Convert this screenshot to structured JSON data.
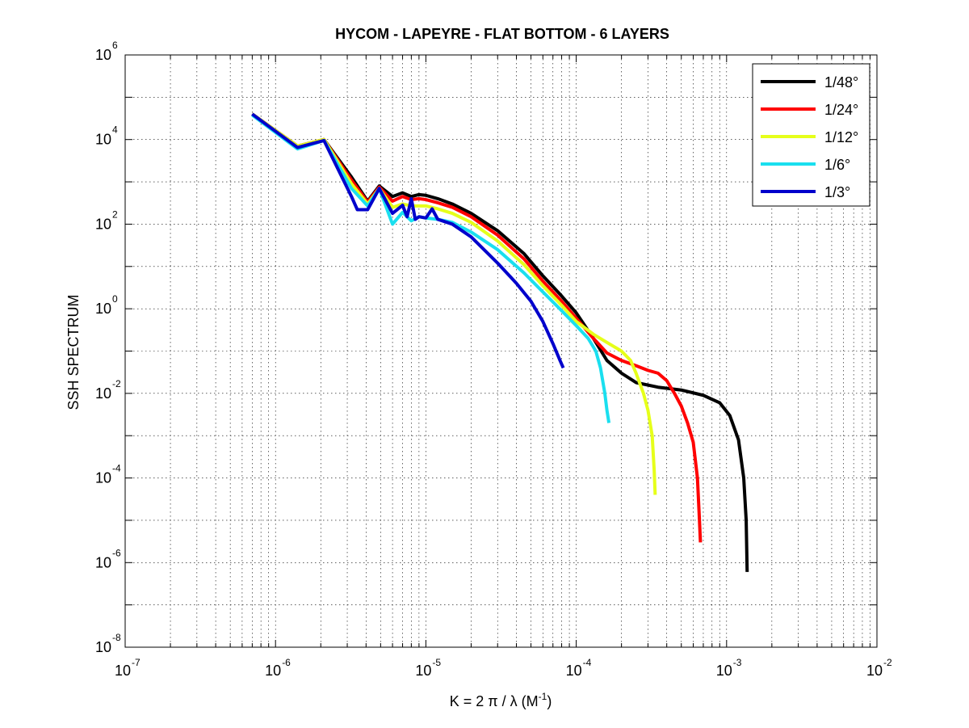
{
  "chart_data": {
    "type": "line",
    "title": "HYCOM - LAPEYRE - FLAT BOTTOM - 6 LAYERS",
    "xlabel": {
      "main": "K = 2 π / λ  (M",
      "sup": "-1",
      "close": ")"
    },
    "ylabel": "SSH SPECTRUM",
    "xscale": "log",
    "yscale": "log",
    "xlim_exp": [
      -7,
      -2
    ],
    "ylim_exp": [
      -8,
      6
    ],
    "x_ticks": [
      {
        "base": "10",
        "exp": "-7"
      },
      {
        "base": "10",
        "exp": "-6"
      },
      {
        "base": "10",
        "exp": "-5"
      },
      {
        "base": "10",
        "exp": "-4"
      },
      {
        "base": "10",
        "exp": "-3"
      },
      {
        "base": "10",
        "exp": "-2"
      }
    ],
    "y_ticks": [
      {
        "base": "10",
        "exp": "6"
      },
      {
        "base": "10",
        "exp": "4"
      },
      {
        "base": "10",
        "exp": "2"
      },
      {
        "base": "10",
        "exp": "0"
      },
      {
        "base": "10",
        "exp": "-2"
      },
      {
        "base": "10",
        "exp": "-4"
      },
      {
        "base": "10",
        "exp": "-6"
      },
      {
        "base": "10",
        "exp": "-8"
      }
    ],
    "grid": true,
    "legend_position": "top-right",
    "series": [
      {
        "name": "1/48°",
        "color": "#000000",
        "points": [
          [
            7e-07,
            40000
          ],
          [
            1.4e-06,
            7000
          ],
          [
            2.1e-06,
            10000
          ],
          [
            3.2e-06,
            1300
          ],
          [
            4.1e-06,
            350
          ],
          [
            4.9e-06,
            800
          ],
          [
            6e-06,
            450
          ],
          [
            7e-06,
            550
          ],
          [
            8e-06,
            450
          ],
          [
            9e-06,
            500
          ],
          [
            1e-05,
            480
          ],
          [
            1.2e-05,
            400
          ],
          [
            1.5e-05,
            300
          ],
          [
            2e-05,
            180
          ],
          [
            3e-05,
            70
          ],
          [
            4.5e-05,
            20
          ],
          [
            6e-05,
            6
          ],
          [
            8e-05,
            2
          ],
          [
            0.0001,
            0.8
          ],
          [
            0.00013,
            0.2
          ],
          [
            0.00016,
            0.06
          ],
          [
            0.0002,
            0.03
          ],
          [
            0.00025,
            0.018
          ],
          [
            0.00035,
            0.014
          ],
          [
            0.0005,
            0.012
          ],
          [
            0.0007,
            0.009
          ],
          [
            0.0009,
            0.006
          ],
          [
            0.00105,
            0.003
          ],
          [
            0.0012,
            0.0008
          ],
          [
            0.0013,
            0.0001
          ],
          [
            0.00135,
            1e-05
          ],
          [
            0.00137,
            6e-07
          ]
        ]
      },
      {
        "name": "1/24°",
        "color": "#ff0000",
        "points": [
          [
            7e-07,
            40000
          ],
          [
            1.4e-06,
            7000
          ],
          [
            2.1e-06,
            10000
          ],
          [
            3.2e-06,
            1100
          ],
          [
            4.1e-06,
            330
          ],
          [
            4.9e-06,
            750
          ],
          [
            6e-06,
            350
          ],
          [
            7e-06,
            450
          ],
          [
            8e-06,
            380
          ],
          [
            9e-06,
            400
          ],
          [
            1e-05,
            380
          ],
          [
            1.2e-05,
            320
          ],
          [
            1.5e-05,
            250
          ],
          [
            2e-05,
            150
          ],
          [
            3e-05,
            55
          ],
          [
            4.5e-05,
            15
          ],
          [
            6e-05,
            4.5
          ],
          [
            8e-05,
            1.5
          ],
          [
            0.0001,
            0.6
          ],
          [
            0.00013,
            0.2
          ],
          [
            0.00016,
            0.09
          ],
          [
            0.0002,
            0.06
          ],
          [
            0.00025,
            0.045
          ],
          [
            0.0003,
            0.035
          ],
          [
            0.00035,
            0.03
          ],
          [
            0.0004,
            0.02
          ],
          [
            0.00045,
            0.01
          ],
          [
            0.0005,
            0.005
          ],
          [
            0.00055,
            0.002
          ],
          [
            0.0006,
            0.0007
          ],
          [
            0.00064,
            0.0001
          ],
          [
            0.00066,
            1e-05
          ],
          [
            0.00067,
            3e-06
          ]
        ]
      },
      {
        "name": "1/12°",
        "color": "#e6ff1a",
        "points": [
          [
            7e-07,
            40000
          ],
          [
            1.4e-06,
            7000
          ],
          [
            2.1e-06,
            10000
          ],
          [
            3.2e-06,
            900
          ],
          [
            4.1e-06,
            300
          ],
          [
            4.9e-06,
            700
          ],
          [
            6e-06,
            250
          ],
          [
            7e-06,
            300
          ],
          [
            8e-06,
            270
          ],
          [
            1e-05,
            270
          ],
          [
            1.2e-05,
            230
          ],
          [
            1.5e-05,
            180
          ],
          [
            2e-05,
            110
          ],
          [
            3e-05,
            40
          ],
          [
            4.5e-05,
            11
          ],
          [
            6e-05,
            3.5
          ],
          [
            8e-05,
            1.2
          ],
          [
            0.0001,
            0.5
          ],
          [
            0.00013,
            0.25
          ],
          [
            0.00016,
            0.16
          ],
          [
            0.0002,
            0.1
          ],
          [
            0.00023,
            0.06
          ],
          [
            0.00025,
            0.03
          ],
          [
            0.00028,
            0.01
          ],
          [
            0.0003,
            0.004
          ],
          [
            0.00032,
            0.001
          ],
          [
            0.00033,
            0.00015
          ],
          [
            0.000335,
            4e-05
          ]
        ]
      },
      {
        "name": "1/6°",
        "color": "#1adfef",
        "points": [
          [
            7e-07,
            38000
          ],
          [
            1.4e-06,
            6000
          ],
          [
            2.1e-06,
            9500
          ],
          [
            3.2e-06,
            700
          ],
          [
            4.1e-06,
            270
          ],
          [
            4.9e-06,
            700
          ],
          [
            6e-06,
            100
          ],
          [
            7e-06,
            190
          ],
          [
            8e-06,
            120
          ],
          [
            9e-06,
            150
          ],
          [
            1e-05,
            140
          ],
          [
            1.2e-05,
            130
          ],
          [
            1.5e-05,
            110
          ],
          [
            2e-05,
            65
          ],
          [
            3e-05,
            25
          ],
          [
            4.5e-05,
            7
          ],
          [
            6e-05,
            2.5
          ],
          [
            8e-05,
            0.9
          ],
          [
            0.0001,
            0.4
          ],
          [
            0.00012,
            0.2
          ],
          [
            0.000135,
            0.1
          ],
          [
            0.000145,
            0.04
          ],
          [
            0.000155,
            0.01
          ],
          [
            0.00016,
            0.004
          ],
          [
            0.000165,
            0.002
          ]
        ]
      },
      {
        "name": "1/3°",
        "color": "#0000cc",
        "points": [
          [
            7e-07,
            40000
          ],
          [
            1.4e-06,
            6500
          ],
          [
            2.1e-06,
            9500
          ],
          [
            3.2e-06,
            450
          ],
          [
            3.5e-06,
            220
          ],
          [
            4.1e-06,
            220
          ],
          [
            4.9e-06,
            700
          ],
          [
            6e-06,
            180
          ],
          [
            7e-06,
            280
          ],
          [
            7.5e-06,
            150
          ],
          [
            8e-06,
            400
          ],
          [
            8.5e-06,
            130
          ],
          [
            9e-06,
            150
          ],
          [
            1e-05,
            140
          ],
          [
            1.1e-05,
            230
          ],
          [
            1.2e-05,
            130
          ],
          [
            1.5e-05,
            100
          ],
          [
            2e-05,
            50
          ],
          [
            3e-05,
            12
          ],
          [
            4e-05,
            4
          ],
          [
            5e-05,
            1.5
          ],
          [
            6e-05,
            0.5
          ],
          [
            7e-05,
            0.15
          ],
          [
            7.8e-05,
            0.06
          ],
          [
            8.2e-05,
            0.04
          ]
        ]
      }
    ]
  }
}
